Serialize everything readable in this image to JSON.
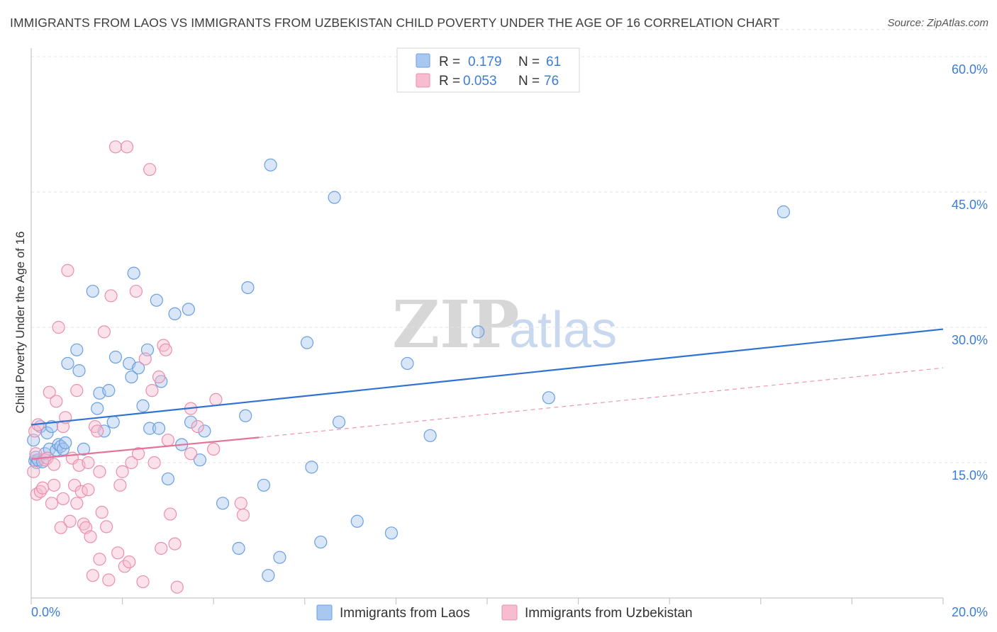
{
  "title": "IMMIGRANTS FROM LAOS VS IMMIGRANTS FROM UZBEKISTAN CHILD POVERTY UNDER THE AGE OF 16 CORRELATION CHART",
  "source": "Source: ZipAtlas.com",
  "watermark": {
    "zip": "ZIP",
    "atlas": "atlas"
  },
  "colors": {
    "laos_fill": "#a8c8f0",
    "laos_stroke": "#6a9fe0",
    "laos_line": "#2f73d2",
    "uzb_fill": "#f7bcd0",
    "uzb_stroke": "#ea8fae",
    "uzb_line": "#e4739b",
    "tick_text": "#3b7dd8"
  },
  "legend": {
    "rows": [
      {
        "r_label": "R = ",
        "r_value": "0.179",
        "n_label": "N = ",
        "n_value": "61"
      },
      {
        "r_label": "R = ",
        "r_value": "0.053",
        "n_label": "N = ",
        "n_value": "76"
      }
    ]
  },
  "chart_data": {
    "type": "scatter",
    "xlabel": "",
    "ylabel": "Child Poverty Under the Age of 16",
    "xlim": [
      0,
      20
    ],
    "ylim": [
      0,
      63
    ],
    "x_tick_labels": {
      "min": "0.0%",
      "max": "20.0%"
    },
    "y_ticks": [
      {
        "value": 15,
        "label": "15.0%"
      },
      {
        "value": 30,
        "label": "30.0%"
      },
      {
        "value": 45,
        "label": "45.0%"
      },
      {
        "value": 60,
        "label": "60.0%"
      }
    ],
    "grid": true,
    "series": [
      {
        "name": "Immigrants from Laos",
        "r": 0.179,
        "n": 61,
        "trend": {
          "x0": 0.0,
          "y0": 19.2,
          "x1": 20.0,
          "y1": 29.8
        },
        "points": [
          [
            0.05,
            17.5
          ],
          [
            0.08,
            15.2
          ],
          [
            0.1,
            15.6
          ],
          [
            0.12,
            15.0
          ],
          [
            0.15,
            15.3
          ],
          [
            0.2,
            19.0
          ],
          [
            0.25,
            15.1
          ],
          [
            0.3,
            16.0
          ],
          [
            0.35,
            18.3
          ],
          [
            0.4,
            16.5
          ],
          [
            0.45,
            19.0
          ],
          [
            0.55,
            16.4
          ],
          [
            0.6,
            17.0
          ],
          [
            0.65,
            16.8
          ],
          [
            0.7,
            16.5
          ],
          [
            0.75,
            17.2
          ],
          [
            0.8,
            26.0
          ],
          [
            1.0,
            27.5
          ],
          [
            1.05,
            25.2
          ],
          [
            1.15,
            16.5
          ],
          [
            1.35,
            34.0
          ],
          [
            1.45,
            21.0
          ],
          [
            1.5,
            22.7
          ],
          [
            1.6,
            18.5
          ],
          [
            1.7,
            23.0
          ],
          [
            1.8,
            19.5
          ],
          [
            1.85,
            26.7
          ],
          [
            2.15,
            26.0
          ],
          [
            2.2,
            24.5
          ],
          [
            2.25,
            36.0
          ],
          [
            2.35,
            25.5
          ],
          [
            2.45,
            21.3
          ],
          [
            2.55,
            27.5
          ],
          [
            2.6,
            18.8
          ],
          [
            2.75,
            33.0
          ],
          [
            2.8,
            18.8
          ],
          [
            2.85,
            24.0
          ],
          [
            3.0,
            13.2
          ],
          [
            3.15,
            31.5
          ],
          [
            3.3,
            17.0
          ],
          [
            3.45,
            32.0
          ],
          [
            3.5,
            19.5
          ],
          [
            3.7,
            15.3
          ],
          [
            3.8,
            18.5
          ],
          [
            4.2,
            10.5
          ],
          [
            4.55,
            5.5
          ],
          [
            4.7,
            20.2
          ],
          [
            4.75,
            34.4
          ],
          [
            5.1,
            12.5
          ],
          [
            5.2,
            2.5
          ],
          [
            5.25,
            48.0
          ],
          [
            5.45,
            4.5
          ],
          [
            6.05,
            28.3
          ],
          [
            6.15,
            14.5
          ],
          [
            6.35,
            6.2
          ],
          [
            6.65,
            44.4
          ],
          [
            6.75,
            19.5
          ],
          [
            7.15,
            8.5
          ],
          [
            7.9,
            7.2
          ],
          [
            8.25,
            26.0
          ],
          [
            8.75,
            18.0
          ],
          [
            9.8,
            29.5
          ],
          [
            11.35,
            22.2
          ],
          [
            16.5,
            42.8
          ]
        ]
      },
      {
        "name": "Immigrants from Uzbekistan",
        "r": 0.053,
        "n": 76,
        "trend": {
          "x0": 0.0,
          "y0": 15.4,
          "x1": 5.0,
          "y1": 17.8
        },
        "trend_extension": {
          "x0": 5.0,
          "y0": 17.8,
          "x1": 20.0,
          "y1": 25.5
        },
        "points": [
          [
            0.05,
            14.0
          ],
          [
            0.08,
            18.5
          ],
          [
            0.1,
            16.0
          ],
          [
            0.12,
            11.5
          ],
          [
            0.15,
            19.2
          ],
          [
            0.2,
            11.8
          ],
          [
            0.25,
            12.2
          ],
          [
            0.3,
            15.3
          ],
          [
            0.35,
            15.5
          ],
          [
            0.4,
            22.8
          ],
          [
            0.45,
            10.5
          ],
          [
            0.5,
            12.5
          ],
          [
            0.5,
            14.8
          ],
          [
            0.55,
            21.8
          ],
          [
            0.6,
            30.0
          ],
          [
            0.65,
            7.8
          ],
          [
            0.7,
            11.0
          ],
          [
            0.7,
            19.0
          ],
          [
            0.75,
            20.0
          ],
          [
            0.8,
            36.3
          ],
          [
            0.85,
            8.5
          ],
          [
            0.9,
            15.5
          ],
          [
            0.95,
            12.5
          ],
          [
            1.0,
            23.0
          ],
          [
            1.0,
            10.5
          ],
          [
            1.05,
            14.7
          ],
          [
            1.1,
            11.8
          ],
          [
            1.15,
            8.2
          ],
          [
            1.2,
            7.8
          ],
          [
            1.25,
            15.0
          ],
          [
            1.25,
            12.0
          ],
          [
            1.3,
            6.8
          ],
          [
            1.35,
            2.5
          ],
          [
            1.4,
            19.0
          ],
          [
            1.45,
            18.5
          ],
          [
            1.5,
            14.0
          ],
          [
            1.5,
            4.3
          ],
          [
            1.55,
            9.5
          ],
          [
            1.6,
            29.5
          ],
          [
            1.65,
            7.9
          ],
          [
            1.7,
            2.0
          ],
          [
            1.75,
            33.5
          ],
          [
            1.85,
            50.0
          ],
          [
            1.9,
            5.0
          ],
          [
            1.95,
            12.5
          ],
          [
            2.0,
            14.0
          ],
          [
            2.05,
            3.5
          ],
          [
            2.1,
            50.0
          ],
          [
            2.15,
            4.0
          ],
          [
            2.2,
            15.0
          ],
          [
            2.3,
            34.0
          ],
          [
            2.35,
            16.0
          ],
          [
            2.45,
            1.8
          ],
          [
            2.5,
            26.5
          ],
          [
            2.6,
            47.5
          ],
          [
            2.65,
            23.0
          ],
          [
            2.7,
            15.0
          ],
          [
            2.8,
            24.5
          ],
          [
            2.85,
            5.5
          ],
          [
            2.9,
            28.0
          ],
          [
            2.95,
            27.5
          ],
          [
            3.0,
            17.5
          ],
          [
            3.05,
            9.3
          ],
          [
            3.15,
            6.0
          ],
          [
            3.2,
            1.2
          ],
          [
            3.5,
            21.0
          ],
          [
            3.5,
            16.0
          ],
          [
            3.65,
            19.0
          ],
          [
            4.05,
            22.0
          ],
          [
            4.0,
            16.5
          ],
          [
            4.6,
            10.5
          ],
          [
            4.65,
            9.2
          ]
        ]
      }
    ]
  },
  "bottom_legend": [
    "Immigrants from Laos",
    "Immigrants from Uzbekistan"
  ]
}
